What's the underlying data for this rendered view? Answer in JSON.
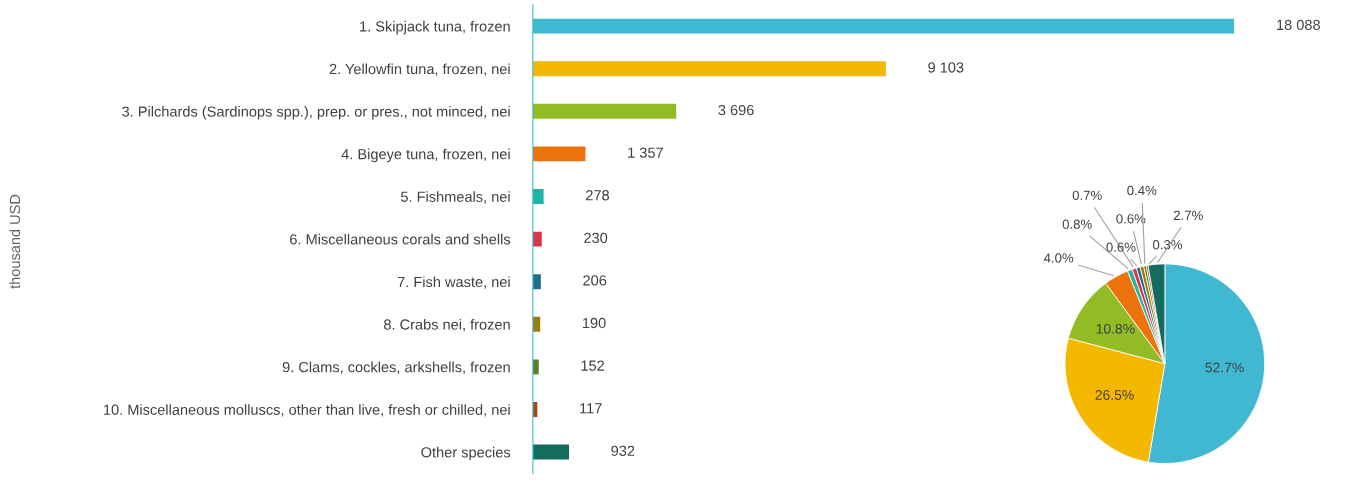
{
  "chart_data": [
    {
      "type": "bar",
      "orientation": "horizontal",
      "ylabel": "thousand USD",
      "grid": false,
      "categories": [
        "1. Skipjack tuna, frozen",
        "2. Yellowfin tuna, frozen, nei",
        "3. Pilchards (Sardinops spp.), prep. or pres., not minced, nei",
        "4. Bigeye tuna, frozen, nei",
        "5. Fishmeals, nei",
        "6. Miscellaneous corals and shells",
        "7. Fish waste, nei",
        "8. Crabs nei, frozen",
        "9. Clams, cockles, arkshells, frozen",
        "10. Miscellaneous molluscs, other than live, fresh or chilled, nei",
        "Other species"
      ],
      "values": [
        18088,
        9103,
        3696,
        1357,
        278,
        230,
        206,
        190,
        152,
        117,
        932
      ],
      "value_labels": [
        "18 088",
        "9 103",
        "3 696",
        "1 357",
        "278",
        "230",
        "206",
        "190",
        "152",
        "117",
        "932"
      ],
      "colors": [
        "#41b8d2",
        "#f5b800",
        "#92bc24",
        "#ec720b",
        "#1fb5a5",
        "#d9354a",
        "#1f6f8b",
        "#9c7c0a",
        "#5b7f1f",
        "#a0481b",
        "#146c5f"
      ]
    },
    {
      "type": "pie",
      "categories": [
        null,
        null,
        null,
        null,
        null,
        null,
        null,
        null,
        null,
        null,
        null
      ],
      "values": [
        52.7,
        26.5,
        10.8,
        4.0,
        0.8,
        0.7,
        0.6,
        0.6,
        0.4,
        0.3,
        2.7
      ],
      "value_labels": [
        "52.7%",
        "26.5%",
        "10.8%",
        "4.0%",
        "0.8%",
        "0.7%",
        "0.6%",
        "0.6%",
        "0.4%",
        "0.3%",
        "2.7%"
      ],
      "colors": [
        "#41b8d2",
        "#f5b800",
        "#92bc24",
        "#ec720b",
        "#1fb5a5",
        "#d9354a",
        "#1f6f8b",
        "#9c7c0a",
        "#5b7f1f",
        "#a0481b",
        "#146c5f"
      ]
    }
  ]
}
